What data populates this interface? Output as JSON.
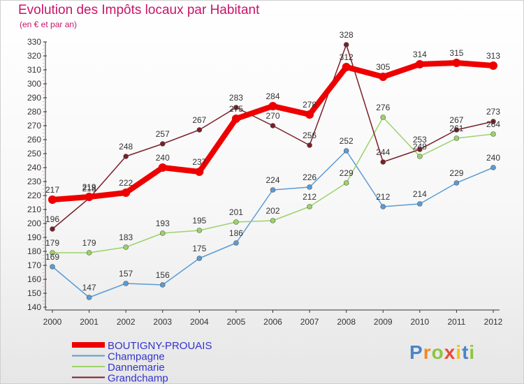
{
  "title": "Evolution des Impôts locaux par Habitant",
  "subtitle": "(en € et par an)",
  "chart_data": {
    "type": "line",
    "title": "Evolution des Impôts locaux par Habitant",
    "subtitle": "(en € et par an)",
    "xlabel": "",
    "ylabel": "",
    "ylim": [
      140,
      330
    ],
    "yticks": [
      140,
      150,
      160,
      170,
      180,
      190,
      200,
      210,
      220,
      230,
      240,
      250,
      260,
      270,
      280,
      290,
      300,
      310,
      320,
      330
    ],
    "x": [
      "2000",
      "2001",
      "2002",
      "2003",
      "2004",
      "2005",
      "2006",
      "2007",
      "2008",
      "2009",
      "2010",
      "2011",
      "2012"
    ],
    "series": [
      {
        "name": "BOUTIGNY-PROUAIS",
        "color": "#ee0000",
        "values": [
          217,
          219,
          222,
          240,
          237,
          275,
          284,
          278,
          312,
          305,
          314,
          315,
          313
        ]
      },
      {
        "name": "Champagne",
        "color": "#5b9bd5",
        "values": [
          169,
          147,
          157,
          156,
          175,
          186,
          224,
          226,
          252,
          212,
          214,
          229,
          240
        ]
      },
      {
        "name": "Dannemarie",
        "color": "#9ad36a",
        "values": [
          179,
          179,
          183,
          193,
          195,
          201,
          202,
          212,
          229,
          276,
          248,
          261,
          264
        ]
      },
      {
        "name": "Grandchamp",
        "color": "#7a1f28",
        "values": [
          196,
          218,
          248,
          257,
          267,
          283,
          270,
          256,
          328,
          244,
          253,
          267,
          273
        ]
      }
    ],
    "legend_position": "bottom-left",
    "grid": false
  },
  "legend": {
    "items": [
      {
        "label": "BOUTIGNY-PROUAIS"
      },
      {
        "label": "Champagne"
      },
      {
        "label": "Dannemarie"
      },
      {
        "label": "Grandchamp"
      }
    ],
    "text_color": "#3333cc"
  },
  "logo": {
    "letters": [
      "P",
      "r",
      "o",
      "x",
      "i",
      "t",
      "i"
    ],
    "colors": [
      "#4a86c8",
      "#f08a24",
      "#8cc63f",
      "#e84b3c",
      "#f0c419",
      "#4a86c8",
      "#8cc63f"
    ]
  }
}
